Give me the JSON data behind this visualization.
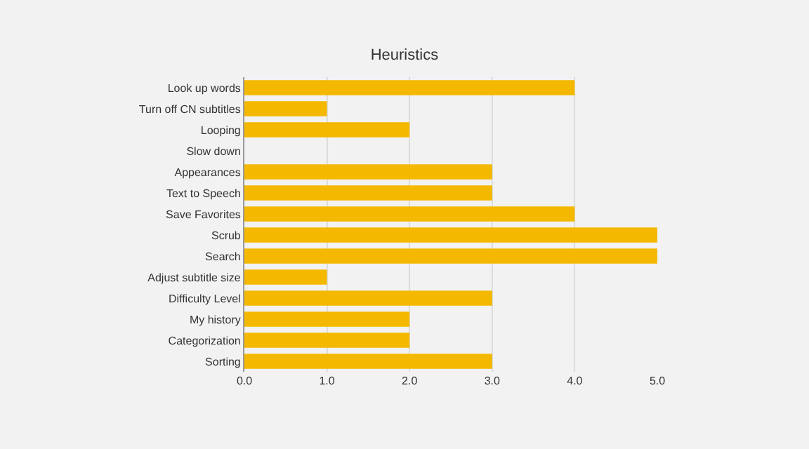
{
  "chart_data": {
    "type": "bar",
    "orientation": "horizontal",
    "title": "Heuristics",
    "categories": [
      "Look up words",
      "Turn off CN subtitles",
      "Looping",
      "Slow down",
      "Appearances",
      "Text to Speech",
      "Save Favorites",
      "Scrub",
      "Search",
      "Adjust subtitle size",
      "Difficulty Level",
      "My history",
      "Categorization",
      "Sorting"
    ],
    "values": [
      4,
      1,
      2,
      0,
      3,
      3,
      4,
      5,
      5,
      1,
      3,
      2,
      2,
      3
    ],
    "color": "#f4b800",
    "xlim": [
      0,
      5
    ],
    "xticks": [
      {
        "value": 0,
        "label": "0.0"
      },
      {
        "value": 1,
        "label": "1.0"
      },
      {
        "value": 2,
        "label": "2.0"
      },
      {
        "value": 3,
        "label": "3.0"
      },
      {
        "value": 4,
        "label": "4.0"
      },
      {
        "value": 5,
        "label": "5.0"
      }
    ],
    "grid": "x"
  }
}
